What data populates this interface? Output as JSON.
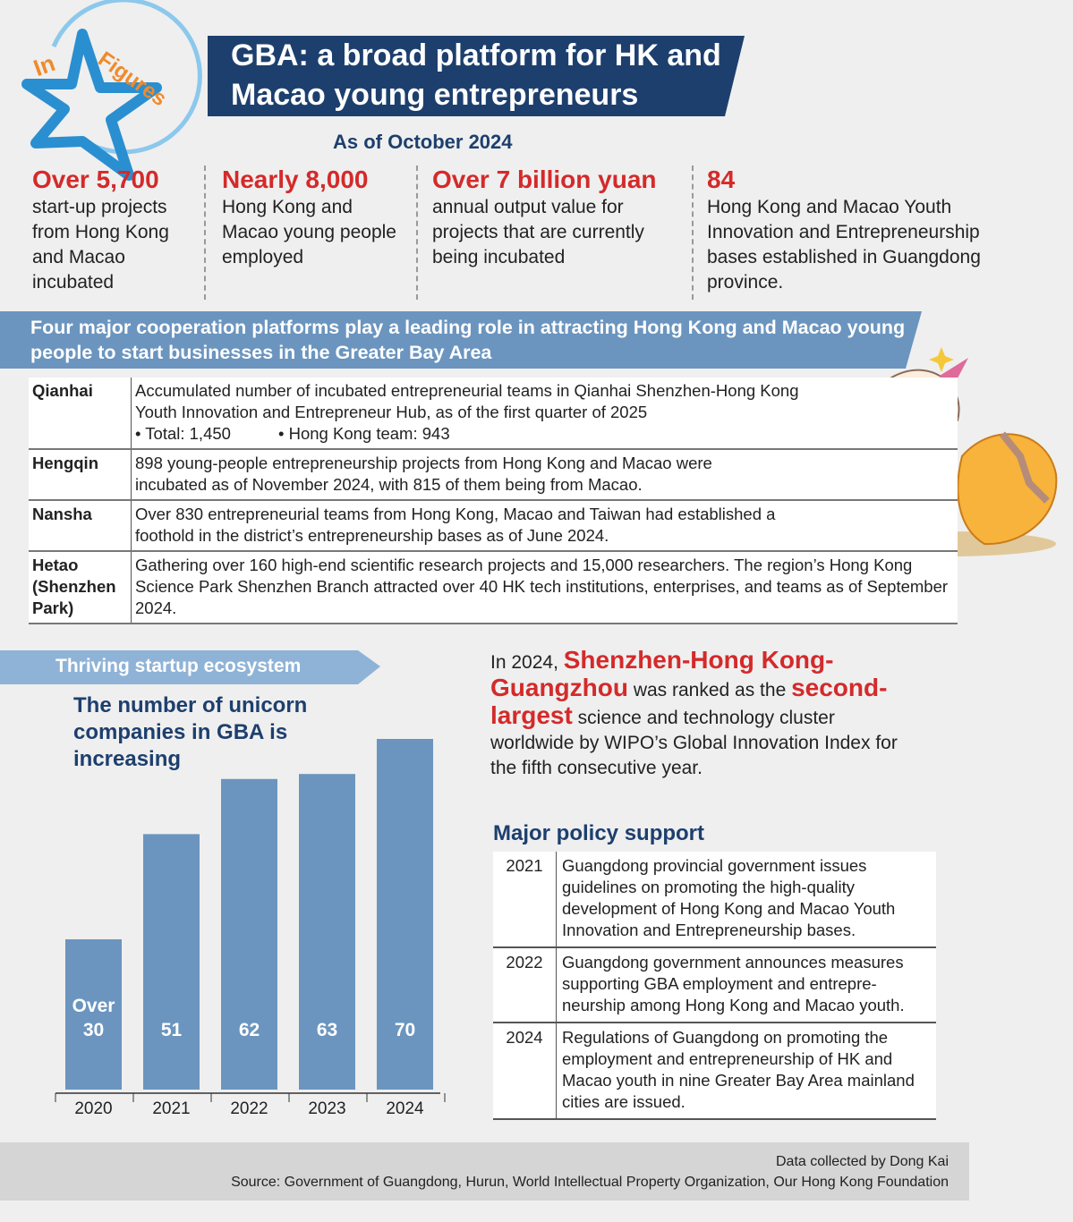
{
  "logo": {
    "word1": "In",
    "word2": "Figures"
  },
  "header": {
    "title": "GBA: a broad platform for HK and Macao young entrepreneurs",
    "date": "As of October 2024"
  },
  "stats": [
    {
      "figure": "Over 5,700",
      "text": "start-up projects from Hong Kong and Macao incubated"
    },
    {
      "figure": "Nearly 8,000",
      "text": "Hong Kong and Macao young people employed"
    },
    {
      "figure": "Over 7 billion yuan",
      "text": "annual output value for projects that are currently being incubated"
    },
    {
      "figure": "84",
      "text": "Hong Kong and Macao Youth Innovation and Entrepreneurship bases established in Guangdong province."
    }
  ],
  "platforms": {
    "heading": "Four major cooperation platforms play a leading role in attracting Hong Kong and Macao young people to start businesses in the Greater Bay Area",
    "rows": [
      {
        "name": "Qianhai",
        "text": "Accumulated number of incubated entrepreneurial teams in Qianhai Shenzhen-Hong Kong Youth Innovation and Entrepreneur Hub, as of the first quarter of 2025",
        "bullets": [
          "• Total: 1,450",
          "• Hong Kong team: 943"
        ]
      },
      {
        "name": "Hengqin",
        "text": "898 young-people entrepreneurship projects from Hong Kong and Macao were incubated as of November 2024, with 815 of them being from Macao."
      },
      {
        "name": "Nansha",
        "text": "Over 830 entrepreneurial teams from Hong Kong, Macao and Taiwan had established a foothold in the district’s entrepreneurship bases as of June 2024."
      },
      {
        "name": "Hetao (Shenzhen Park)",
        "text": "Gathering over 160 high-end scientific research projects and 15,000 researchers. The region’s Hong Kong Science Park Shenzhen Branch attracted over 40 HK tech institutions, enterprises, and teams as of September 2024."
      }
    ]
  },
  "section_label": "Thriving startup ecosystem",
  "chart_data": {
    "type": "bar",
    "title": "The number of unicorn companies in GBA is increasing",
    "categories": [
      "2020",
      "2021",
      "2022",
      "2023",
      "2024"
    ],
    "values": [
      30,
      51,
      62,
      63,
      70
    ],
    "value_labels": [
      "Over 30",
      "51",
      "62",
      "63",
      "70"
    ],
    "color": "#6b95bf",
    "ylim": [
      0,
      80
    ]
  },
  "highlight": {
    "parts": [
      "In 2024, ",
      "Shenzhen-Hong Kong-Guangzhou",
      " was ranked as the ",
      "second-largest",
      " science and technology cluster worldwide by WIPO’s Global Innovation Index for the fifth consecutive year."
    ]
  },
  "policy": {
    "title": "Major policy support",
    "rows": [
      {
        "year": "2021",
        "text": "Guangdong provincial government issues guidelines on promoting the high-quality development of Hong Kong and Macao Youth Innovation and Entrepreneurship bases."
      },
      {
        "year": "2022",
        "text": "Guangdong government announces measures supporting GBA employment and entrepre-neurship among Hong Kong and Macao youth."
      },
      {
        "year": "2024",
        "text": "Regulations of Guangdong on promoting the employment and entrepreneurship of HK and Macao youth in nine Greater Bay Area mainland cities are issued."
      }
    ]
  },
  "footer": {
    "credit": "Data collected by Dong Kai",
    "source": "Source: Government of Guangdong, Hurun, World Intellectual Property Organization, Our Hong Kong Foundation"
  }
}
